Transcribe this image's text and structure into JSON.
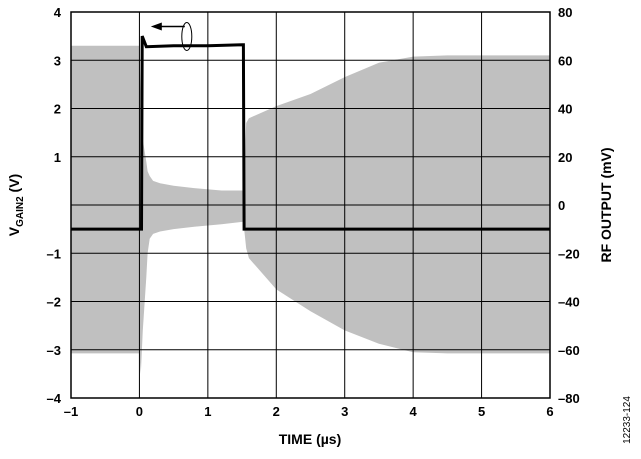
{
  "chart_data": {
    "type": "line",
    "title": "",
    "xlabel": "TIME (µs)",
    "ylabel_left": {
      "main": "V",
      "subscript": "GAIN2",
      "suffix": " (V)"
    },
    "ylabel_right": "RF OUTPUT (mV)",
    "xlim": [
      -1,
      6
    ],
    "ylim_left": [
      -4,
      4
    ],
    "ylim_right": [
      -80,
      80
    ],
    "grid": true,
    "x_ticks": [
      -1,
      0,
      1,
      2,
      3,
      4,
      5,
      6
    ],
    "x_tick_labels": [
      "–1",
      "0",
      "1",
      "2",
      "3",
      "4",
      "5",
      "6"
    ],
    "y_left_ticks": [
      -4,
      -3,
      -2,
      -1,
      0,
      1,
      2,
      3,
      4
    ],
    "y_left_tick_labels": [
      "–4",
      "–3",
      "–2",
      "–1",
      "",
      "1",
      "2",
      "3",
      "4"
    ],
    "y_right_ticks": [
      -80,
      -60,
      -40,
      -20,
      0,
      20,
      40,
      60,
      80
    ],
    "y_right_tick_labels": [
      "–80",
      "–60",
      "–40",
      "–20",
      "0",
      "20",
      "40",
      "60",
      "80"
    ],
    "annotation": {
      "type": "arrow-left",
      "axis": "left"
    },
    "figure_id": "12233-124",
    "colors": {
      "envelope": "#c0c0c0",
      "pulse": "#000000",
      "grid": "#000000"
    },
    "series": [
      {
        "axis": "left",
        "style": "thick-black-line",
        "x": [
          -1.0,
          -0.01,
          0.03,
          0.04,
          0.1,
          0.5,
          1.0,
          1.5,
          1.52,
          1.53,
          1.55,
          2.0,
          4.0,
          6.0
        ],
        "y": [
          -0.5,
          -0.5,
          -0.5,
          3.5,
          3.28,
          3.3,
          3.3,
          3.32,
          3.32,
          -0.5,
          -0.5,
          -0.5,
          -0.5,
          -0.5
        ]
      },
      {
        "axis": "right",
        "style": "gray-envelope",
        "x": [
          -1.0,
          -0.7,
          -0.3,
          0.0,
          0.02,
          0.05,
          0.1,
          0.12,
          0.15,
          0.2,
          0.3,
          0.5,
          0.8,
          1.2,
          1.5,
          1.52,
          1.56,
          1.6,
          2.0,
          2.5,
          3.0,
          3.5,
          4.0,
          4.5,
          5.0,
          5.5,
          6.0
        ],
        "upper": [
          66,
          66,
          66,
          66,
          42,
          27,
          18,
          14,
          12,
          10,
          9,
          8,
          7,
          6,
          6,
          6,
          34,
          36,
          41,
          46,
          53,
          59,
          61.5,
          62,
          62,
          62,
          62
        ],
        "lower": [
          -61.5,
          -61.5,
          -61.5,
          -61.5,
          -70,
          -52,
          -30,
          -20,
          -14,
          -12,
          -11,
          -10,
          -9,
          -8,
          -7,
          -7,
          -18,
          -22,
          -35,
          -44,
          -52,
          -57.5,
          -61,
          -61.5,
          -61.5,
          -61.5,
          -61.5
        ]
      }
    ]
  }
}
